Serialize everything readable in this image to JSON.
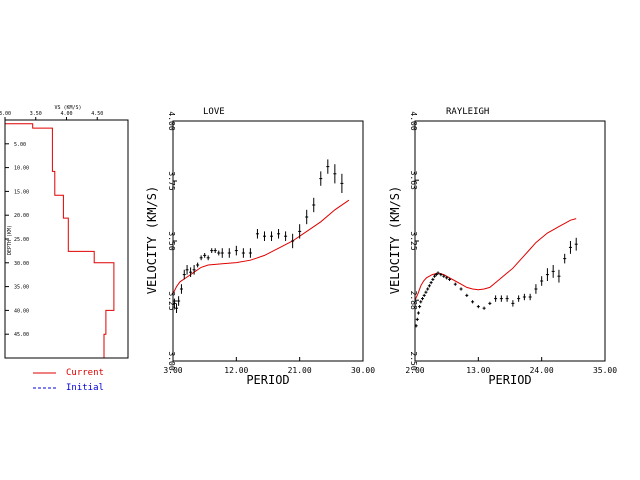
{
  "chart_data": [
    {
      "type": "line",
      "panel": "model",
      "title": "VS (KM/S)",
      "xlabel": "VS (KM/S)",
      "ylabel": "DEPTH (KM)",
      "xlim": [
        3.0,
        5.0
      ],
      "ylim": [
        0,
        50
      ],
      "x_ticks": [
        "3.00",
        "3.50",
        "4.00",
        "4.50"
      ],
      "y_ticks": [
        "5.00",
        "10.00",
        "15.00",
        "20.00",
        "25.00",
        "30.00",
        "35.00",
        "40.00",
        "45.00"
      ],
      "legend": [
        {
          "label": "Current",
          "color": "#e00000",
          "dash": false
        },
        {
          "label": "Initial",
          "color": "#0000dd",
          "dash": true
        }
      ],
      "series": [
        {
          "name": "Current",
          "color": "#e00000",
          "vs": [
            3.0,
            3.0,
            3.45,
            3.45,
            3.77,
            3.77,
            3.81,
            3.81,
            3.95,
            3.95,
            4.03,
            4.03,
            4.45,
            4.45,
            4.77,
            4.77,
            4.77,
            4.77,
            4.64,
            4.64,
            4.61,
            4.61
          ],
          "depth": [
            0.0,
            0.8,
            0.8,
            1.7,
            1.7,
            10.8,
            10.8,
            15.8,
            15.8,
            20.6,
            20.6,
            27.6,
            27.6,
            30.0,
            30.0,
            36.5,
            36.5,
            40.0,
            40.0,
            45.0,
            45.0,
            50.0
          ]
        }
      ]
    },
    {
      "type": "scatter",
      "panel": "love",
      "title": "LOVE",
      "xlabel": "PERIOD",
      "ylabel": "VELOCITY (KM/S)",
      "xlim": [
        3.0,
        30.0
      ],
      "ylim": [
        3.0,
        4.0
      ],
      "x_ticks": [
        "3.00",
        "12.00",
        "21.00",
        "30.00"
      ],
      "y_ticks": [
        "3.00",
        "3.25",
        "3.50",
        "3.75",
        "4.00"
      ],
      "observed": {
        "period": [
          3.2,
          3.5,
          3.8,
          4.2,
          4.6,
          5.0,
          5.5,
          6.0,
          6.5,
          7.0,
          7.5,
          8.0,
          8.5,
          9.0,
          9.5,
          10.0,
          11.0,
          12.0,
          13.0,
          14.0,
          15.0,
          16.0,
          17.0,
          18.0,
          19.0,
          20.0,
          21.0,
          22.0,
          23.0,
          24.0,
          25.0,
          26.0,
          27.0
        ],
        "velocity": [
          3.24,
          3.22,
          3.25,
          3.3,
          3.36,
          3.38,
          3.37,
          3.38,
          3.4,
          3.43,
          3.44,
          3.43,
          3.46,
          3.46,
          3.45,
          3.45,
          3.45,
          3.46,
          3.45,
          3.45,
          3.53,
          3.52,
          3.52,
          3.53,
          3.52,
          3.5,
          3.54,
          3.6,
          3.65,
          3.76,
          3.81,
          3.78,
          3.74
        ],
        "error": [
          0.02,
          0.02,
          0.02,
          0.02,
          0.02,
          0.02,
          0.02,
          0.02,
          0.01,
          0.01,
          0.01,
          0.01,
          0.01,
          0.01,
          0.01,
          0.02,
          0.02,
          0.02,
          0.02,
          0.02,
          0.02,
          0.02,
          0.02,
          0.02,
          0.02,
          0.03,
          0.03,
          0.03,
          0.03,
          0.03,
          0.03,
          0.04,
          0.04
        ]
      },
      "predicted": {
        "color": "#e00000",
        "period": [
          3.0,
          3.5,
          4.0,
          5.0,
          6.0,
          7.0,
          8.0,
          10.0,
          12.0,
          14.0,
          16.0,
          18.0,
          20.0,
          22.0,
          24.0,
          26.0,
          28.0
        ],
        "velocity": [
          3.28,
          3.31,
          3.33,
          3.35,
          3.37,
          3.39,
          3.4,
          3.405,
          3.41,
          3.42,
          3.44,
          3.47,
          3.5,
          3.54,
          3.58,
          3.63,
          3.67
        ]
      }
    },
    {
      "type": "scatter",
      "panel": "rayleigh",
      "title": "RAYLEIGH",
      "xlabel": "PERIOD",
      "ylabel": "VELOCITY (KM/S)",
      "xlim": [
        2.0,
        35.0
      ],
      "ylim": [
        2.5,
        4.0
      ],
      "x_ticks": [
        "2.00",
        "13.00",
        "24.00",
        "35.00"
      ],
      "y_ticks": [
        "2.50",
        "2.88",
        "3.25",
        "3.63",
        "4.00"
      ],
      "observed": {
        "period": [
          2.2,
          2.4,
          2.6,
          2.8,
          3.0,
          3.3,
          3.6,
          3.9,
          4.2,
          4.5,
          4.8,
          5.1,
          5.4,
          5.7,
          6.0,
          6.5,
          7.0,
          7.5,
          8.0,
          9.0,
          10.0,
          11.0,
          12.0,
          13.0,
          14.0,
          15.0,
          16.0,
          17.0,
          18.0,
          19.0,
          20.0,
          21.0,
          22.0,
          23.0,
          24.0,
          25.0,
          26.0,
          27.0,
          28.0,
          29.0,
          30.0
        ],
        "velocity": [
          2.72,
          2.76,
          2.8,
          2.84,
          2.87,
          2.89,
          2.91,
          2.93,
          2.95,
          2.97,
          2.99,
          3.01,
          3.03,
          3.04,
          3.05,
          3.04,
          3.03,
          3.02,
          3.01,
          2.98,
          2.95,
          2.91,
          2.87,
          2.84,
          2.83,
          2.86,
          2.89,
          2.89,
          2.89,
          2.86,
          2.89,
          2.9,
          2.9,
          2.95,
          3.0,
          3.04,
          3.06,
          3.03,
          3.14,
          3.21,
          3.23
        ],
        "error": [
          0.01,
          0.01,
          0.01,
          0.01,
          0.01,
          0.01,
          0.01,
          0.01,
          0.01,
          0.01,
          0.01,
          0.01,
          0.01,
          0.01,
          0.01,
          0.01,
          0.01,
          0.01,
          0.01,
          0.01,
          0.01,
          0.01,
          0.01,
          0.01,
          0.01,
          0.01,
          0.02,
          0.02,
          0.02,
          0.02,
          0.02,
          0.02,
          0.02,
          0.03,
          0.03,
          0.04,
          0.04,
          0.04,
          0.03,
          0.04,
          0.04
        ]
      },
      "predicted": {
        "color": "#e00000",
        "period": [
          2.0,
          2.5,
          3.0,
          3.5,
          4.0,
          5.0,
          6.0,
          7.0,
          8.0,
          9.0,
          10.0,
          11.0,
          12.0,
          13.0,
          14.0,
          15.0,
          16.0,
          17.0,
          18.0,
          19.0,
          20.0,
          21.0,
          22.0,
          23.0,
          24.0,
          25.0,
          26.0,
          27.0,
          28.0,
          29.0,
          30.0
        ],
        "velocity": [
          2.88,
          2.92,
          2.97,
          3.0,
          3.02,
          3.04,
          3.05,
          3.04,
          3.02,
          3.0,
          2.98,
          2.96,
          2.95,
          2.945,
          2.95,
          2.96,
          2.99,
          3.02,
          3.05,
          3.08,
          3.12,
          3.16,
          3.2,
          3.24,
          3.27,
          3.3,
          3.32,
          3.34,
          3.36,
          3.38,
          3.39
        ]
      }
    }
  ]
}
